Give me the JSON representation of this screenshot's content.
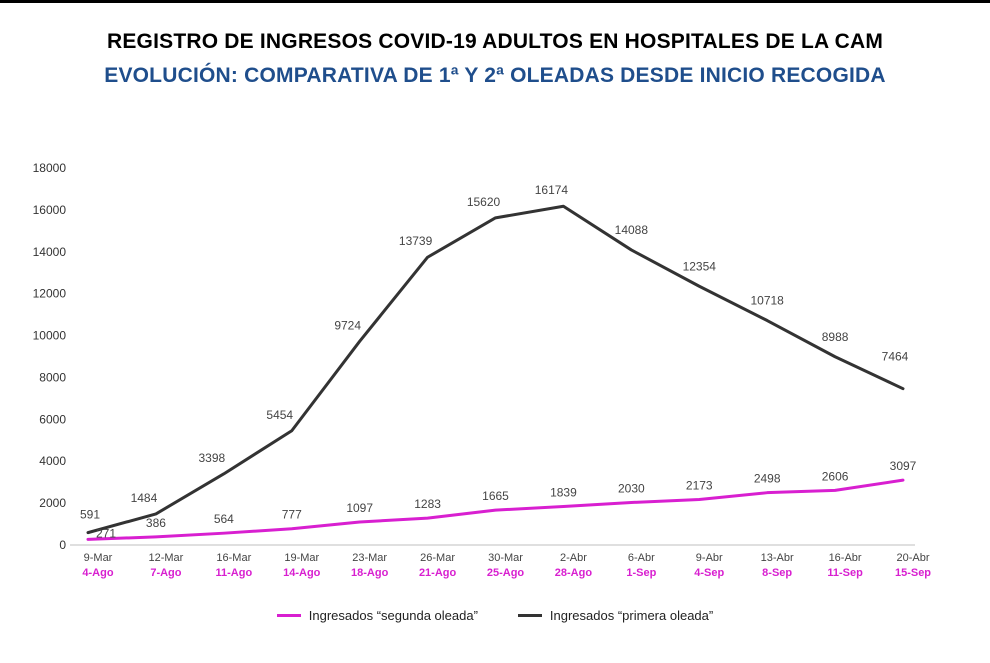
{
  "header": {
    "title": "REGISTRO DE INGRESOS COVID-19 ADULTOS  EN HOSPITALES DE LA CAM",
    "subtitle": "EVOLUCIÓN: COMPARATIVA DE 1ª Y 2ª OLEADAS DESDE INICIO RECOGIDA"
  },
  "chart_data": {
    "type": "line",
    "title": "REGISTRO DE INGRESOS COVID-19 ADULTOS  EN HOSPITALES DE LA CAM",
    "subtitle": "EVOLUCIÓN: COMPARATIVA DE 1ª Y 2ª OLEADAS DESDE INICIO RECOGIDA",
    "categories_first_wave": [
      "9-Mar",
      "12-Mar",
      "16-Mar",
      "19-Mar",
      "23-Mar",
      "26-Mar",
      "30-Mar",
      "2-Abr",
      "6-Abr",
      "9-Abr",
      "13-Abr",
      "16-Abr",
      "20-Abr"
    ],
    "categories_second_wave": [
      "4-Ago",
      "7-Ago",
      "11-Ago",
      "14-Ago",
      "18-Ago",
      "21-Ago",
      "25-Ago",
      "28-Ago",
      "1-Sep",
      "4-Sep",
      "8-Sep",
      "11-Sep",
      "15-Sep"
    ],
    "series": [
      {
        "name": "Ingresados “primera oleada”",
        "color": "#333333",
        "values": [
          591,
          1484,
          3398,
          5454,
          9724,
          13739,
          15620,
          16174,
          14088,
          12354,
          10718,
          8988,
          7464
        ]
      },
      {
        "name": "Ingresados “segunda oleada”",
        "color": "#d81fd0",
        "values": [
          271,
          386,
          564,
          777,
          1097,
          1283,
          1665,
          1839,
          2030,
          2173,
          2498,
          2606,
          3097
        ]
      }
    ],
    "yticks": [
      0,
      2000,
      4000,
      6000,
      8000,
      10000,
      12000,
      14000,
      16000,
      18000
    ],
    "ylim": [
      0,
      18000
    ],
    "grid": false,
    "legend_position": "bottom"
  },
  "legend": {
    "items": [
      {
        "label": "Ingresados “segunda oleada”",
        "color": "#d81fd0"
      },
      {
        "label": "Ingresados “primera oleada”",
        "color": "#333333"
      }
    ]
  }
}
